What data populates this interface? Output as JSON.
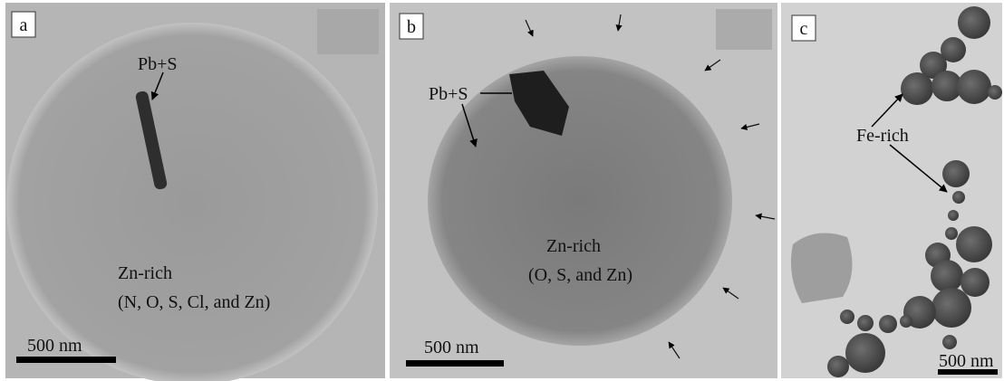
{
  "panels": [
    {
      "label": "a",
      "annotations": [
        "Pb+S",
        "Zn-rich",
        "(N, O, S, Cl, and Zn)"
      ],
      "scale_bar": "500 nm"
    },
    {
      "label": "b",
      "annotations": [
        "Pb+S",
        "Zn-rich",
        "(O, S, and Zn)"
      ],
      "scale_bar": "500 nm"
    },
    {
      "label": "c",
      "annotations": [
        "Fe-rich"
      ],
      "scale_bar": "500 nm"
    }
  ]
}
